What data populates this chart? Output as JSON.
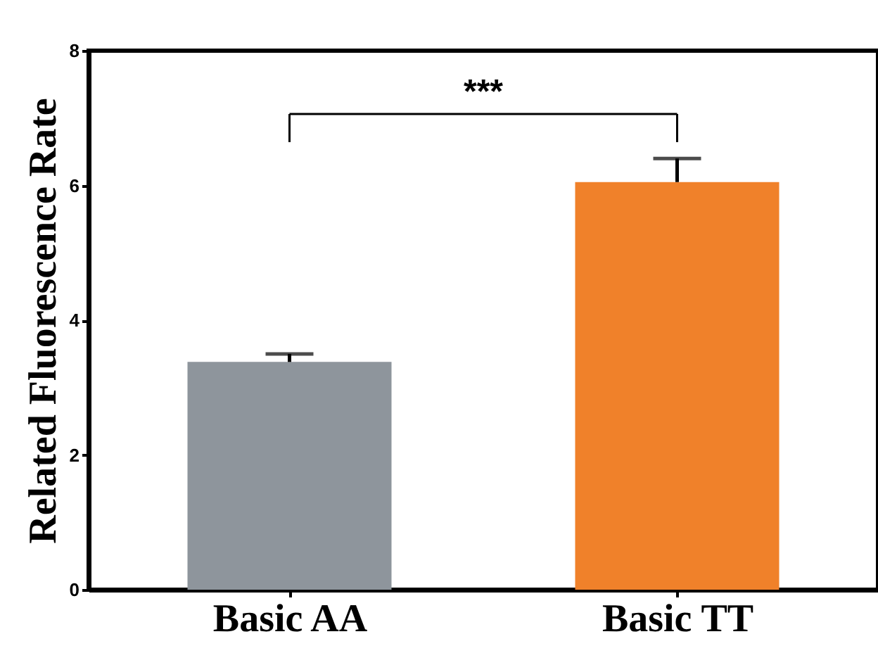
{
  "chart_data": {
    "type": "bar",
    "ylabel": "Related Fluorescence Rate",
    "categories": [
      "Basic AA",
      "Basic TT"
    ],
    "values": [
      3.38,
      6.05
    ],
    "colors": [
      "#8e959c",
      "#f0812a"
    ],
    "errors": [
      [
        3.38,
        3.5
      ],
      [
        6.05,
        6.4
      ]
    ],
    "ylim": [
      0,
      8
    ],
    "yticks": [
      0,
      2,
      4,
      6,
      8
    ],
    "grid": false,
    "annotations": [
      "***"
    ]
  }
}
